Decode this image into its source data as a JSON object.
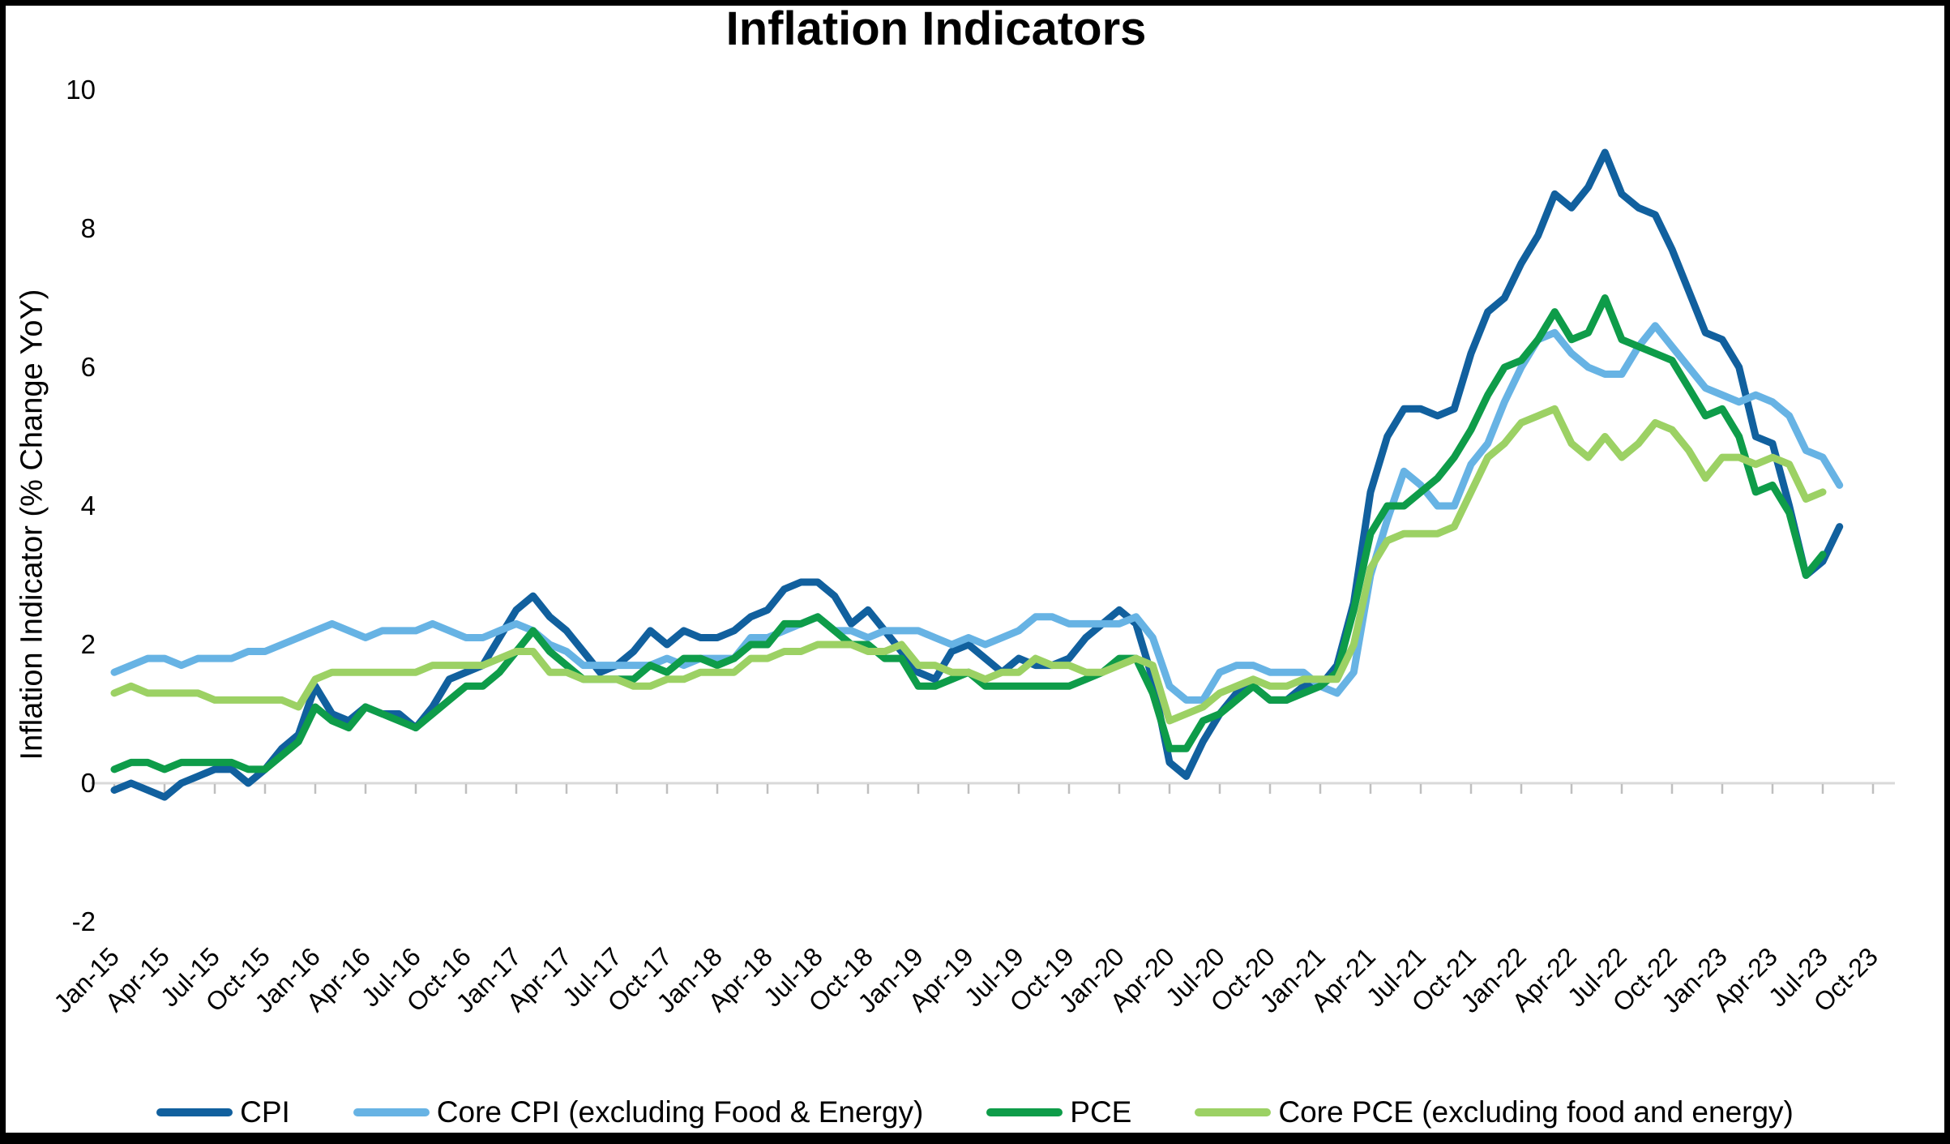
{
  "title": "Inflation Indicators",
  "y_axis": {
    "label": "Inflation Indicator (% Change YoY)",
    "ticks": [
      10,
      8,
      6,
      4,
      2,
      0,
      -2
    ],
    "min": -2,
    "max": 10
  },
  "x_axis": {
    "tick_labels": [
      "Jan-15",
      "Apr-15",
      "Jul-15",
      "Oct-15",
      "Jan-16",
      "Apr-16",
      "Jul-16",
      "Oct-16",
      "Jan-17",
      "Apr-17",
      "Jul-17",
      "Oct-17",
      "Jan-18",
      "Apr-18",
      "Jul-18",
      "Oct-18",
      "Jan-19",
      "Apr-19",
      "Jul-19",
      "Oct-19",
      "Jan-20",
      "Apr-20",
      "Jul-20",
      "Oct-20",
      "Jan-21",
      "Apr-21",
      "Jul-21",
      "Oct-21",
      "Jan-22",
      "Apr-22",
      "Jul-22",
      "Oct-22",
      "Jan-23",
      "Apr-23",
      "Jul-23",
      "Oct-23"
    ],
    "months_per_tick": 3
  },
  "chart_data": {
    "type": "line",
    "title": "Inflation Indicators",
    "xlabel": "",
    "ylabel": "Inflation Indicator (% Change YoY)",
    "ylim": [
      -2,
      10
    ],
    "x_start": "Jan-15",
    "x_frequency": "monthly",
    "grid": "zero-line-only",
    "legend_position": "bottom",
    "series": [
      {
        "id": "cpi",
        "name": "CPI",
        "color": "#11609E",
        "last_month": "Aug-23",
        "values": [
          -0.1,
          0.0,
          -0.1,
          -0.2,
          0.0,
          0.1,
          0.2,
          0.2,
          0.0,
          0.2,
          0.5,
          0.7,
          1.4,
          1.0,
          0.9,
          1.1,
          1.0,
          1.0,
          0.8,
          1.1,
          1.5,
          1.6,
          1.7,
          2.1,
          2.5,
          2.7,
          2.4,
          2.2,
          1.9,
          1.6,
          1.7,
          1.9,
          2.2,
          2.0,
          2.2,
          2.1,
          2.1,
          2.2,
          2.4,
          2.5,
          2.8,
          2.9,
          2.9,
          2.7,
          2.3,
          2.5,
          2.2,
          1.9,
          1.6,
          1.5,
          1.9,
          2.0,
          1.8,
          1.6,
          1.8,
          1.7,
          1.7,
          1.8,
          2.1,
          2.3,
          2.5,
          2.3,
          1.5,
          0.3,
          0.1,
          0.6,
          1.0,
          1.3,
          1.4,
          1.2,
          1.2,
          1.4,
          1.4,
          1.7,
          2.6,
          4.2,
          5.0,
          5.4,
          5.4,
          5.3,
          5.4,
          6.2,
          6.8,
          7.0,
          7.5,
          7.9,
          8.5,
          8.3,
          8.6,
          9.1,
          8.5,
          8.3,
          8.2,
          7.7,
          7.1,
          6.5,
          6.4,
          6.0,
          5.0,
          4.9,
          4.0,
          3.0,
          3.2,
          3.7
        ]
      },
      {
        "id": "core-cpi",
        "name": "Core CPI (excluding Food & Energy)",
        "color": "#67B3E4",
        "last_month": "Aug-23",
        "values": [
          1.6,
          1.7,
          1.8,
          1.8,
          1.7,
          1.8,
          1.8,
          1.8,
          1.9,
          1.9,
          2.0,
          2.1,
          2.2,
          2.3,
          2.2,
          2.1,
          2.2,
          2.2,
          2.2,
          2.3,
          2.2,
          2.1,
          2.1,
          2.2,
          2.3,
          2.2,
          2.0,
          1.9,
          1.7,
          1.7,
          1.7,
          1.7,
          1.7,
          1.8,
          1.7,
          1.8,
          1.8,
          1.8,
          2.1,
          2.1,
          2.2,
          2.3,
          2.4,
          2.2,
          2.2,
          2.1,
          2.2,
          2.2,
          2.2,
          2.1,
          2.0,
          2.1,
          2.0,
          2.1,
          2.2,
          2.4,
          2.4,
          2.3,
          2.3,
          2.3,
          2.3,
          2.4,
          2.1,
          1.4,
          1.2,
          1.2,
          1.6,
          1.7,
          1.7,
          1.6,
          1.6,
          1.6,
          1.4,
          1.3,
          1.6,
          3.0,
          3.8,
          4.5,
          4.3,
          4.0,
          4.0,
          4.6,
          4.9,
          5.5,
          6.0,
          6.4,
          6.5,
          6.2,
          6.0,
          5.9,
          5.9,
          6.3,
          6.6,
          6.3,
          6.0,
          5.7,
          5.6,
          5.5,
          5.6,
          5.5,
          5.3,
          4.8,
          4.7,
          4.3
        ]
      },
      {
        "id": "pce",
        "name": "PCE",
        "color": "#0E9C49",
        "last_month": "Jul-23",
        "values": [
          0.2,
          0.3,
          0.3,
          0.2,
          0.3,
          0.3,
          0.3,
          0.3,
          0.2,
          0.2,
          0.4,
          0.6,
          1.1,
          0.9,
          0.8,
          1.1,
          1.0,
          0.9,
          0.8,
          1.0,
          1.2,
          1.4,
          1.4,
          1.6,
          1.9,
          2.2,
          1.9,
          1.7,
          1.5,
          1.5,
          1.5,
          1.5,
          1.7,
          1.6,
          1.8,
          1.8,
          1.7,
          1.8,
          2.0,
          2.0,
          2.3,
          2.3,
          2.4,
          2.2,
          2.0,
          2.0,
          1.8,
          1.8,
          1.4,
          1.4,
          1.5,
          1.6,
          1.4,
          1.4,
          1.4,
          1.4,
          1.4,
          1.4,
          1.5,
          1.6,
          1.8,
          1.8,
          1.3,
          0.5,
          0.5,
          0.9,
          1.0,
          1.2,
          1.4,
          1.2,
          1.2,
          1.3,
          1.4,
          1.6,
          2.5,
          3.6,
          4.0,
          4.0,
          4.2,
          4.4,
          4.7,
          5.1,
          5.6,
          6.0,
          6.1,
          6.4,
          6.8,
          6.4,
          6.5,
          7.0,
          6.4,
          6.3,
          6.2,
          6.1,
          5.7,
          5.3,
          5.4,
          5.0,
          4.2,
          4.3,
          3.9,
          3.0,
          3.3
        ]
      },
      {
        "id": "core-pce",
        "name": "Core PCE (excluding food and energy)",
        "color": "#9CD164",
        "last_month": "Jul-23",
        "values": [
          1.3,
          1.4,
          1.3,
          1.3,
          1.3,
          1.3,
          1.2,
          1.2,
          1.2,
          1.2,
          1.2,
          1.1,
          1.5,
          1.6,
          1.6,
          1.6,
          1.6,
          1.6,
          1.6,
          1.7,
          1.7,
          1.7,
          1.7,
          1.8,
          1.9,
          1.9,
          1.6,
          1.6,
          1.5,
          1.5,
          1.5,
          1.4,
          1.4,
          1.5,
          1.5,
          1.6,
          1.6,
          1.6,
          1.8,
          1.8,
          1.9,
          1.9,
          2.0,
          2.0,
          2.0,
          1.9,
          1.9,
          2.0,
          1.7,
          1.7,
          1.6,
          1.6,
          1.5,
          1.6,
          1.6,
          1.8,
          1.7,
          1.7,
          1.6,
          1.6,
          1.7,
          1.8,
          1.7,
          0.9,
          1.0,
          1.1,
          1.3,
          1.4,
          1.5,
          1.4,
          1.4,
          1.5,
          1.5,
          1.5,
          2.0,
          3.1,
          3.5,
          3.6,
          3.6,
          3.6,
          3.7,
          4.2,
          4.7,
          4.9,
          5.2,
          5.3,
          5.4,
          4.9,
          4.7,
          5.0,
          4.7,
          4.9,
          5.2,
          5.1,
          4.8,
          4.4,
          4.7,
          4.7,
          4.6,
          4.7,
          4.6,
          4.1,
          4.2
        ]
      }
    ],
    "axis_colors": {
      "zero_line": "#D9D9D9",
      "tick_marks": "#BFBFBF"
    }
  }
}
